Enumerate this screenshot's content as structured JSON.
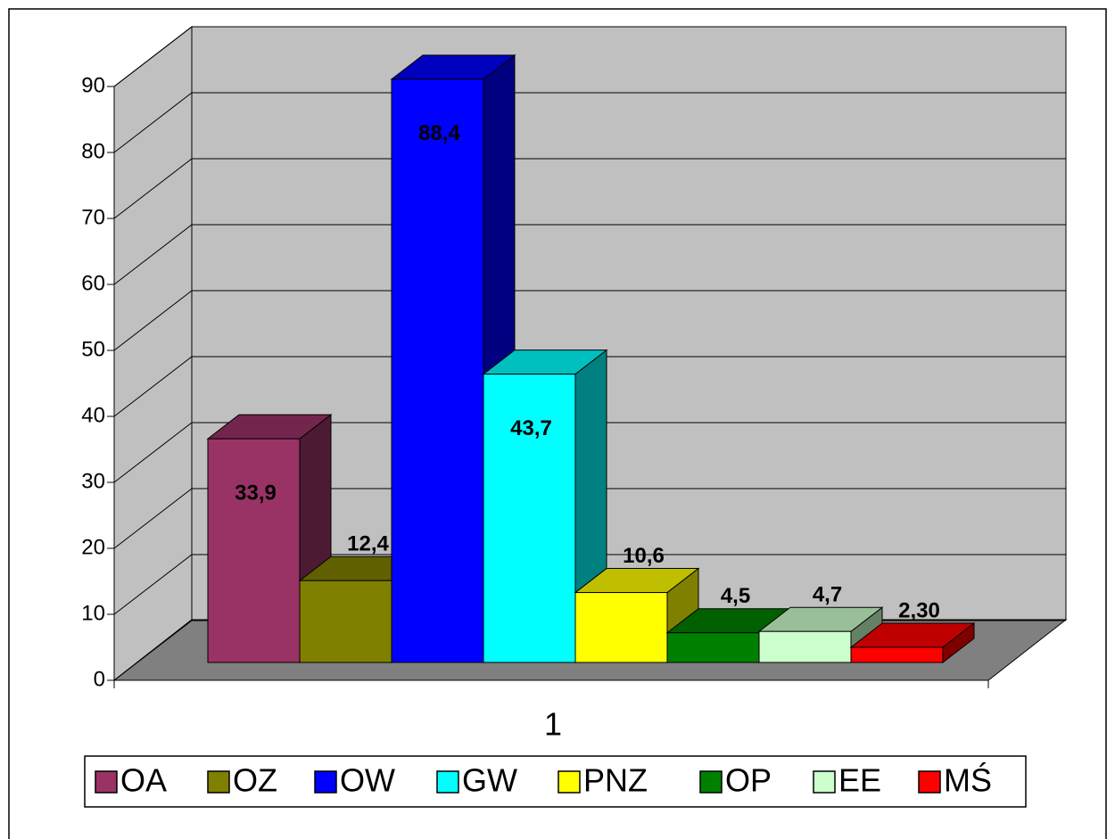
{
  "chart_data": {
    "type": "bar3d",
    "categories": [
      "1"
    ],
    "series": [
      {
        "name": "OA",
        "color": "#993366",
        "values": [
          33.9
        ],
        "value_labels": [
          "33,9"
        ]
      },
      {
        "name": "OZ",
        "color": "#808000",
        "values": [
          12.4
        ],
        "value_labels": [
          "12,4"
        ]
      },
      {
        "name": "OW",
        "color": "#0000FF",
        "values": [
          88.4
        ],
        "value_labels": [
          "88,4"
        ]
      },
      {
        "name": "GW",
        "color": "#00FFFF",
        "values": [
          43.7
        ],
        "value_labels": [
          "43,7"
        ]
      },
      {
        "name": "PNZ",
        "color": "#FFFF00",
        "values": [
          10.6
        ],
        "value_labels": [
          "10,6"
        ]
      },
      {
        "name": "OP",
        "color": "#008000",
        "values": [
          4.5
        ],
        "value_labels": [
          "4,5"
        ]
      },
      {
        "name": "EE",
        "color": "#CCFFCC",
        "values": [
          4.7
        ],
        "value_labels": [
          "4,7"
        ]
      },
      {
        "name": "MŚ",
        "color": "#FF0000",
        "values": [
          2.3
        ],
        "value_labels": [
          "2,30"
        ]
      }
    ],
    "ylim": [
      0,
      90
    ],
    "yticks": [
      0,
      10,
      20,
      30,
      40,
      50,
      60,
      70,
      80,
      90
    ],
    "grid": true,
    "legend": "bottom"
  }
}
